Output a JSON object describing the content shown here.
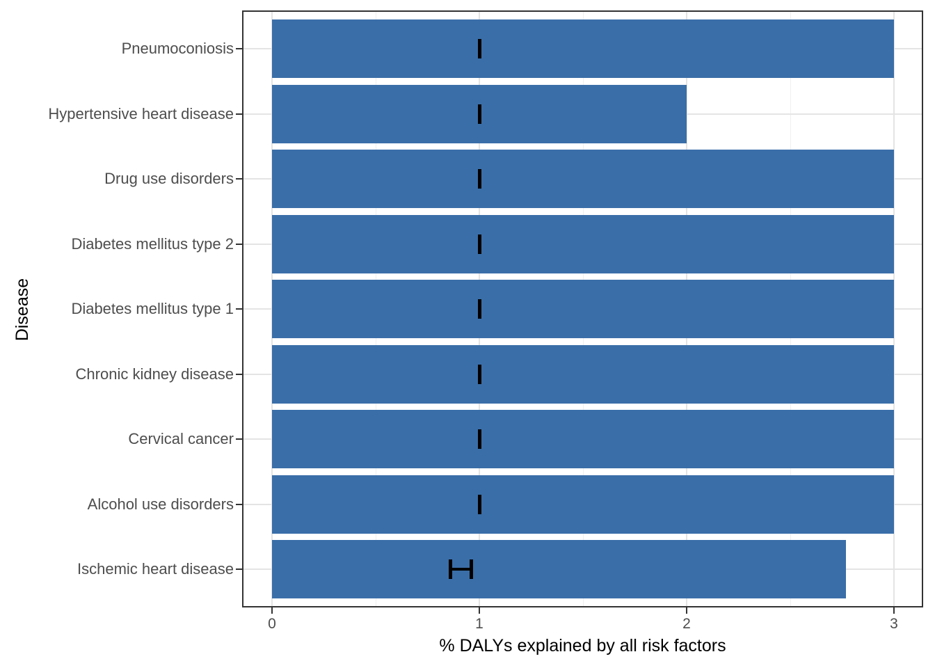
{
  "chart_data": {
    "type": "bar",
    "orientation": "horizontal",
    "title": "",
    "xlabel": "% DALYs explained by all risk factors",
    "ylabel": "Disease",
    "xlim": [
      0,
      3
    ],
    "x_ticks": [
      0,
      1,
      2,
      3
    ],
    "x_tick_labels": [
      "0",
      "1",
      "2",
      "3"
    ],
    "x_minor_ticks": [
      0.5,
      1.5,
      2.5
    ],
    "grid": "vertical major+minor, horizontal major at category centers",
    "legend_position": "none",
    "categories": [
      "Pneumoconiosis",
      "Hypertensive heart disease",
      "Drug use disorders",
      "Diabetes mellitus type 2",
      "Diabetes mellitus type 1",
      "Chronic kidney disease",
      "Cervical cancer",
      "Alcohol use disorders",
      "Ischemic heart disease"
    ],
    "values": [
      3.0,
      2.0,
      3.0,
      3.0,
      3.0,
      3.0,
      3.0,
      3.0,
      2.77
    ],
    "error_bars": [
      {
        "xmin": 1.0,
        "xmax": 1.0
      },
      {
        "xmin": 1.0,
        "xmax": 1.0
      },
      {
        "xmin": 1.0,
        "xmax": 1.0
      },
      {
        "xmin": 1.0,
        "xmax": 1.0
      },
      {
        "xmin": 1.0,
        "xmax": 1.0
      },
      {
        "xmin": 1.0,
        "xmax": 1.0
      },
      {
        "xmin": 1.0,
        "xmax": 1.0
      },
      {
        "xmin": 1.0,
        "xmax": 1.0
      },
      {
        "xmin": 0.86,
        "xmax": 0.96
      }
    ],
    "colors": {
      "bar_fill": "#3A6EA8",
      "error_bar": "#000000",
      "grid_major": "#E4E4E4",
      "grid_minor": "#F0F0F0",
      "panel_border": "#333333",
      "tick_mark": "#333333",
      "axis_tick_text": "#4D4D4D",
      "axis_title_text": "#000000"
    }
  }
}
